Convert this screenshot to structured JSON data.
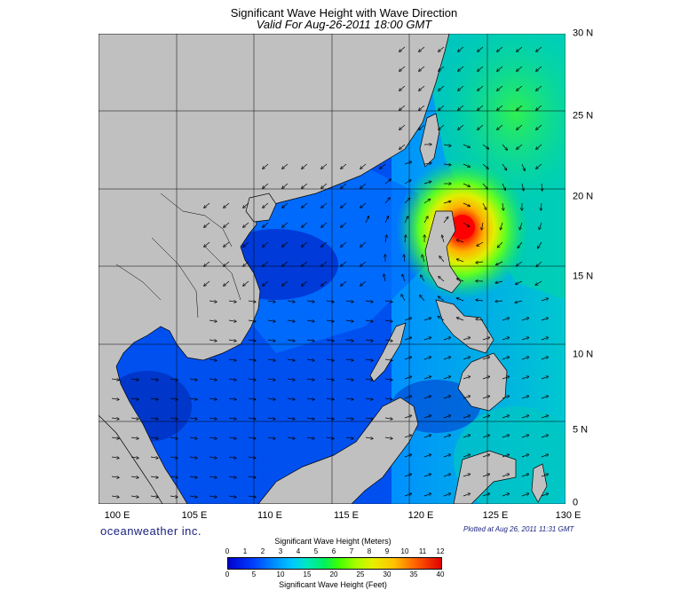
{
  "title": "Significant Wave Height with Wave Direction",
  "subtitle": "Valid For Aug-26-2011 18:00 GMT",
  "lon_labels": [
    "100 E",
    "105 E",
    "110 E",
    "115 E",
    "120 E",
    "125 E",
    "130 E"
  ],
  "lat_labels": [
    "30 N",
    "25 N",
    "20 N",
    "15 N",
    "10 N",
    "5 N",
    "0"
  ],
  "brand": "oceanweather inc.",
  "plotted_at": "Plotted at Aug 26, 2011 11:31 GMT",
  "colorbar": {
    "meters_title": "Significant Wave Height (Meters)",
    "feet_title": "Significant Wave Height (Feet)",
    "meters_ticks": [
      "0",
      "1",
      "2",
      "3",
      "4",
      "5",
      "6",
      "7",
      "8",
      "9",
      "10",
      "11",
      "12"
    ],
    "feet_ticks": [
      "0",
      "5",
      "10",
      "15",
      "20",
      "25",
      "30",
      "35",
      "40"
    ]
  },
  "colors": {
    "land": "#c0c0c0",
    "deep_blue": "#0040e0",
    "typhoon_core": "#ff0000"
  }
}
